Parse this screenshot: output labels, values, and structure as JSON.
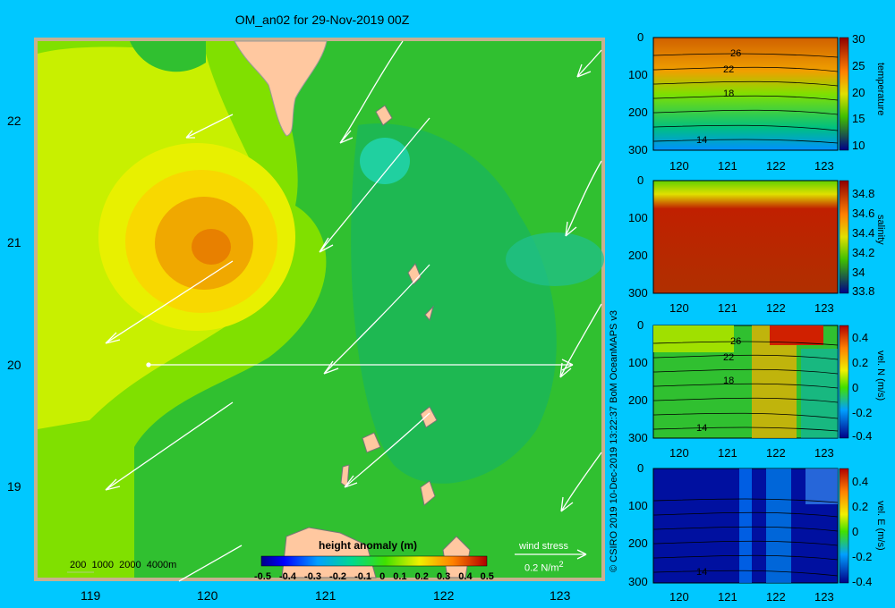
{
  "map": {
    "title": "OM_an02 for 29-Nov-2019 00Z",
    "lon_ticks": [
      "119",
      "120",
      "121",
      "122",
      "123"
    ],
    "lat_ticks": [
      "22",
      "21",
      "20",
      "19"
    ],
    "depth_legend": [
      "200",
      "1000",
      "2000",
      "4000m"
    ],
    "colorbar_title": "height anomaly (m)",
    "colorbar_ticks": [
      "-0.5",
      "-0.4",
      "-0.3",
      "-0.2",
      "-0.1",
      "0",
      "0.1",
      "0.2",
      "0.3",
      "0.4",
      "0.5"
    ],
    "wind_label": "wind stress",
    "wind_scale": "0.2 N/m",
    "wind_scale_sup": "2"
  },
  "credit": "© CSIRO 2019   10-Dec-2019 13:22:37 BoM OceanMAPS v3",
  "panels": [
    {
      "name": "temperature",
      "label": "temperature",
      "depth_ticks": [
        "0",
        "100",
        "200",
        "300"
      ],
      "lon_ticks": [
        "120",
        "121",
        "122",
        "123"
      ],
      "cbar_ticks": [
        "30",
        "25",
        "20",
        "15",
        "10"
      ],
      "contours": [
        "26",
        "22",
        "18",
        "14"
      ]
    },
    {
      "name": "salinity",
      "label": "salinity",
      "depth_ticks": [
        "0",
        "100",
        "200",
        "300"
      ],
      "lon_ticks": [
        "120",
        "121",
        "122",
        "123"
      ],
      "cbar_ticks": [
        "34.8",
        "34.6",
        "34.4",
        "34.2",
        "34",
        "33.8"
      ],
      "contours": []
    },
    {
      "name": "vel-n",
      "label": "vel. N (m/s)",
      "depth_ticks": [
        "0",
        "100",
        "200",
        "300"
      ],
      "lon_ticks": [
        "120",
        "121",
        "122",
        "123"
      ],
      "cbar_ticks": [
        "0.4",
        "0.2",
        "0",
        "-0.2",
        "-0.4"
      ],
      "contours": [
        "26",
        "22",
        "18",
        "14"
      ]
    },
    {
      "name": "vel-e",
      "label": "vel. E (m/s)",
      "depth_ticks": [
        "0",
        "100",
        "200",
        "300"
      ],
      "lon_ticks": [
        "120",
        "121",
        "122",
        "123"
      ],
      "cbar_ticks": [
        "0.4",
        "0.2",
        "0",
        "-0.2",
        "-0.4"
      ],
      "contours": [
        "14"
      ]
    }
  ]
}
